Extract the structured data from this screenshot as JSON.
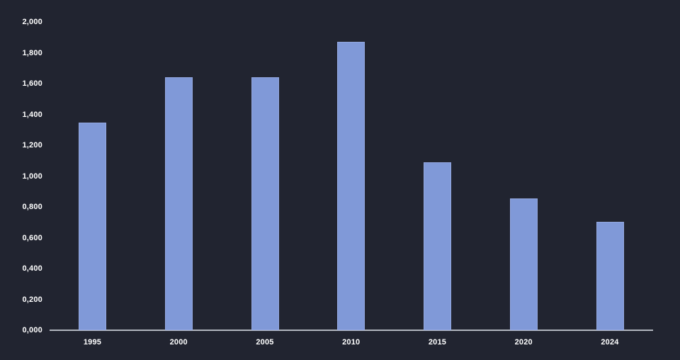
{
  "chart_data": {
    "type": "bar",
    "title": "",
    "xlabel": "",
    "ylabel": "",
    "categories": [
      "1995",
      "2000",
      "2005",
      "2010",
      "2015",
      "2020",
      "2024"
    ],
    "values": [
      1345,
      1640,
      1640,
      1870,
      1090,
      855,
      705
    ],
    "ylim": [
      0,
      2000
    ],
    "ytick_step": 200,
    "ytick_labels": [
      "0,000",
      "0,200",
      "0,400",
      "0,600",
      "0,800",
      "1,000",
      "1,200",
      "1,400",
      "1,600",
      "1,800",
      "2,000"
    ],
    "grid": "off",
    "legend": "none",
    "colors": {
      "background": "#212430",
      "bar_fill": "#8099D8",
      "bar_border": "#94A8E0",
      "axis_line": "#B2B6BE",
      "tick_text": "#FFFFFF"
    }
  }
}
